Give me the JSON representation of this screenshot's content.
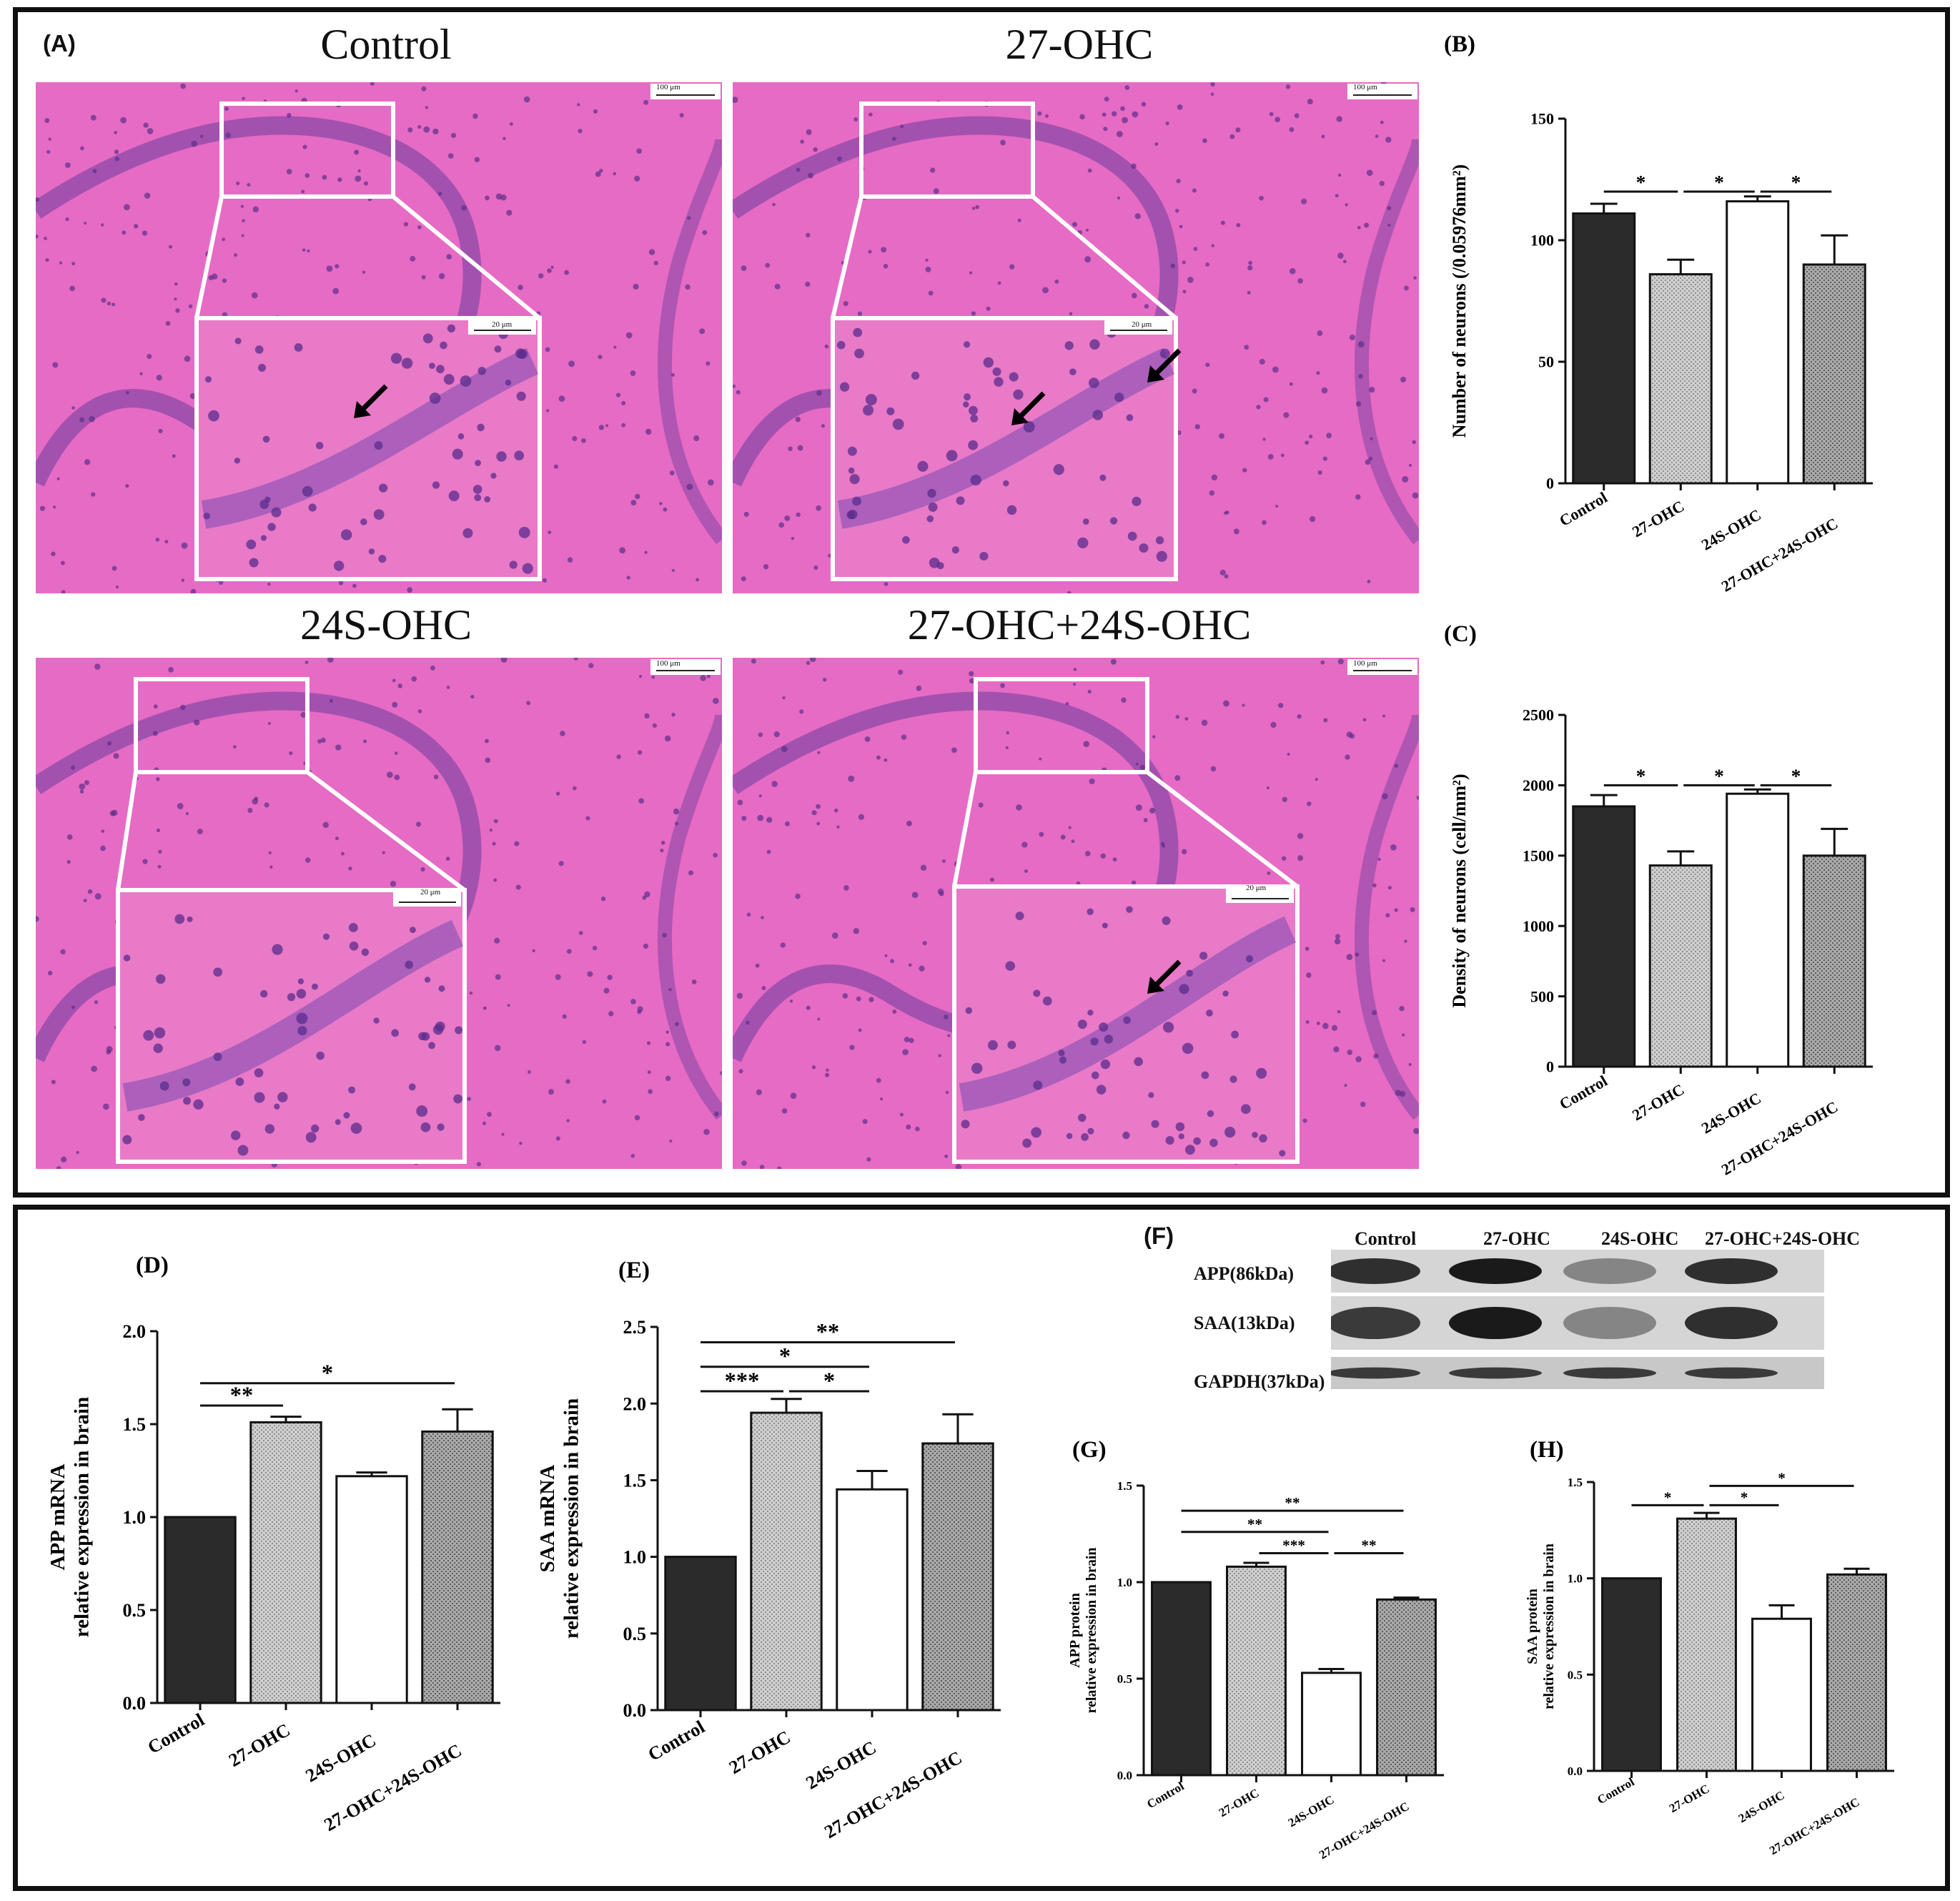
{
  "top_panel": {
    "label": "(A)",
    "micrographs": [
      {
        "title": "Control",
        "scale_outer": "100 μm",
        "scale_inner": "20 μm"
      },
      {
        "title": "27-OHC",
        "scale_outer": "100 μm",
        "scale_inner": "20 μm"
      },
      {
        "title": "24S-OHC",
        "scale_outer": "100 μm",
        "scale_inner": "20 μm"
      },
      {
        "title": "27-OHC+24S-OHC",
        "scale_outer": "100 μm",
        "scale_inner": "20 μm"
      }
    ]
  },
  "western_blot": {
    "label": "(F)",
    "lanes": [
      "Control",
      "27-OHC",
      "24S-OHC",
      "27-OHC+24S-OHC"
    ],
    "rows": [
      "APP(86kDa)",
      "SAA(13kDa)",
      "GAPDH(37kDa)"
    ],
    "band_intensity": [
      [
        0.85,
        0.95,
        0.45,
        0.85
      ],
      [
        0.8,
        0.95,
        0.45,
        0.85
      ],
      [
        0.8,
        0.8,
        0.8,
        0.8
      ]
    ]
  },
  "colors": {
    "bar1": "#2b2b2b",
    "bar2": "#d9d9d9",
    "bar3": "#ffffff",
    "bar4": "#bfbfbf",
    "tissue": "#e66bc4",
    "cells": "#6c3c9e",
    "frame": "#111111"
  },
  "chart_data": [
    {
      "id": "B",
      "label": "(B)",
      "type": "bar",
      "categories": [
        "Control",
        "27-OHC",
        "24S-OHC",
        "27-OHC+24S-OHC"
      ],
      "values": [
        111,
        86,
        116,
        90
      ],
      "errors": [
        4,
        6,
        2,
        12
      ],
      "ylabel": "Number of neurons (/0.05976mm²)",
      "ylim": [
        0,
        150
      ],
      "yticks": [
        0,
        50,
        100,
        150
      ],
      "significance": [
        {
          "from": 0,
          "to": 1,
          "text": "*",
          "level": 120
        },
        {
          "from": 1,
          "to": 2,
          "text": "*",
          "level": 120
        },
        {
          "from": 2,
          "to": 3,
          "text": "*",
          "level": 120
        }
      ]
    },
    {
      "id": "C",
      "label": "(C)",
      "type": "bar",
      "categories": [
        "Control",
        "27-OHC",
        "24S-OHC",
        "27-OHC+24S-OHC"
      ],
      "values": [
        1850,
        1430,
        1940,
        1500
      ],
      "errors": [
        80,
        100,
        30,
        190
      ],
      "ylabel": "Density of neurons (cell/mm²)",
      "ylim": [
        0,
        2500
      ],
      "yticks": [
        0,
        500,
        1000,
        1500,
        2000,
        2500
      ],
      "significance": [
        {
          "from": 0,
          "to": 1,
          "text": "*",
          "level": 2000
        },
        {
          "from": 1,
          "to": 2,
          "text": "*",
          "level": 2000
        },
        {
          "from": 2,
          "to": 3,
          "text": "*",
          "level": 2000
        }
      ]
    },
    {
      "id": "D",
      "label": "(D)",
      "type": "bar",
      "categories": [
        "Control",
        "27-OHC",
        "24S-OHC",
        "27-OHC+24S-OHC"
      ],
      "values": [
        1.0,
        1.51,
        1.22,
        1.46
      ],
      "errors": [
        0,
        0.03,
        0.02,
        0.12
      ],
      "ylabel": "APP mRNA",
      "ylabel2": "relative expression in brain",
      "ylim": [
        0,
        2.0
      ],
      "yticks": [
        "0.0",
        "0.5",
        "1.0",
        "1.5",
        "2.0"
      ],
      "significance": [
        {
          "from": 0,
          "to": 1,
          "text": "**",
          "level": 1.6
        },
        {
          "from": 0,
          "to": 3,
          "text": "*",
          "level": 1.72
        }
      ]
    },
    {
      "id": "E",
      "label": "(E)",
      "type": "bar",
      "categories": [
        "Control",
        "27-OHC",
        "24S-OHC",
        "27-OHC+24S-OHC"
      ],
      "values": [
        1.0,
        1.94,
        1.44,
        1.74
      ],
      "errors": [
        0,
        0.09,
        0.12,
        0.19
      ],
      "ylabel": "SAA mRNA",
      "ylabel2": "relative expression in brain",
      "ylim": [
        0,
        2.5
      ],
      "yticks": [
        "0.0",
        "0.5",
        "1.0",
        "1.5",
        "2.0",
        "2.5"
      ],
      "significance": [
        {
          "from": 0,
          "to": 1,
          "text": "***",
          "level": 2.08
        },
        {
          "from": 1,
          "to": 2,
          "text": "*",
          "level": 2.08
        },
        {
          "from": 0,
          "to": 2,
          "text": "*",
          "level": 2.24
        },
        {
          "from": 0,
          "to": 3,
          "text": "**",
          "level": 2.4
        }
      ]
    },
    {
      "id": "G",
      "label": "(G)",
      "type": "bar",
      "categories": [
        "Control",
        "27-OHC",
        "24S-OHC",
        "27-OHC+24S-OHC"
      ],
      "values": [
        1.0,
        1.08,
        0.53,
        0.91
      ],
      "errors": [
        0,
        0.02,
        0.02,
        0.01
      ],
      "ylabel": "APP protein",
      "ylabel2": "relative expression in brain",
      "ylim": [
        0,
        1.5
      ],
      "yticks": [
        "0.0",
        "0.5",
        "1.0",
        "1.5"
      ],
      "significance": [
        {
          "from": 1,
          "to": 2,
          "text": "***",
          "level": 1.15
        },
        {
          "from": 2,
          "to": 3,
          "text": "**",
          "level": 1.15
        },
        {
          "from": 0,
          "to": 2,
          "text": "**",
          "level": 1.26
        },
        {
          "from": 0,
          "to": 3,
          "text": "**",
          "level": 1.37
        }
      ]
    },
    {
      "id": "H",
      "label": "(H)",
      "type": "bar",
      "categories": [
        "Control",
        "27-OHC",
        "24S-OHC",
        "27-OHC+24S-OHC"
      ],
      "values": [
        1.0,
        1.31,
        0.79,
        1.02
      ],
      "errors": [
        0,
        0.03,
        0.07,
        0.03
      ],
      "ylabel": "SAA protein",
      "ylabel2": "relative expression in brain",
      "ylim": [
        0,
        1.5
      ],
      "yticks": [
        "0.0",
        "0.5",
        "1.0",
        "1.5"
      ],
      "significance": [
        {
          "from": 0,
          "to": 1,
          "text": "*",
          "level": 1.38
        },
        {
          "from": 1,
          "to": 2,
          "text": "*",
          "level": 1.38
        },
        {
          "from": 1,
          "to": 3,
          "text": "*",
          "level": 1.48
        }
      ]
    }
  ]
}
